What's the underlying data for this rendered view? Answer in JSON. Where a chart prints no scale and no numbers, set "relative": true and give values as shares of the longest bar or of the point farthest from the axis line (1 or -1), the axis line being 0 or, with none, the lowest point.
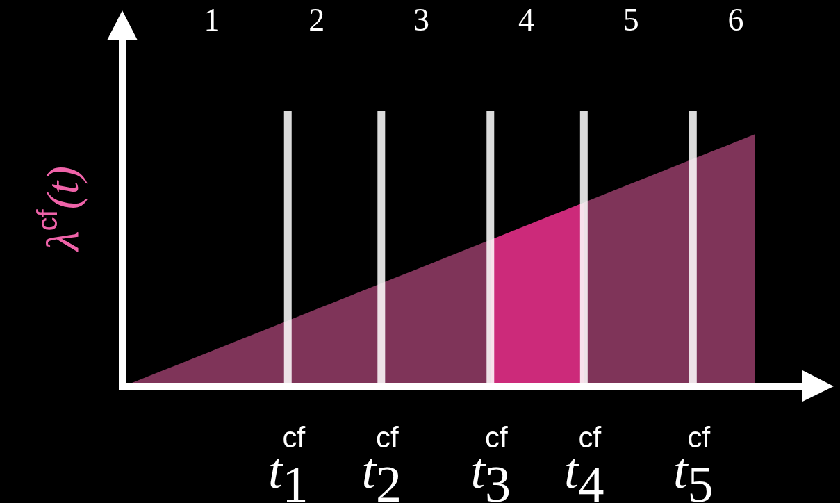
{
  "chart_data": {
    "type": "area",
    "relative": true,
    "ylabel": "λ$^{cf}$(t)",
    "categories": [
      null,
      null,
      null,
      null,
      null,
      null,
      null,
      null,
      null,
      null,
      "t$_{1}$$^{cf}$",
      null,
      null,
      null,
      null,
      null,
      "t$_{2}$$^{cf}$",
      null,
      null,
      null,
      null,
      null,
      null,
      "t$_{3}$$^{cf}$",
      null,
      null,
      null,
      null,
      null,
      "t$_{4}$$^{cf}$",
      null,
      null,
      null,
      null,
      null,
      null,
      "t$_{5}$$^{cf}$",
      null,
      null,
      null,
      null
    ],
    "series": [
      {
        "color": "#7f3459",
        "values": [
          0,
          0.025,
          0.05,
          0.075,
          0.1,
          0.125,
          0.15,
          0.175,
          0.2,
          0.225,
          0.25,
          0.275,
          0.3,
          0.325,
          0.35,
          0.375,
          0.4,
          0.425,
          0.45,
          0.475,
          0.5,
          0.525,
          0.55,
          0.575,
          null,
          null,
          null,
          null,
          null,
          null,
          null,
          null,
          null,
          null,
          null,
          null,
          null,
          null,
          null,
          null,
          null
        ]
      },
      {
        "color": "#7f3459",
        "values": [
          null,
          null,
          null,
          null,
          null,
          null,
          null,
          null,
          null,
          null,
          null,
          null,
          null,
          null,
          null,
          null,
          null,
          null,
          null,
          null,
          null,
          null,
          null,
          null,
          null,
          null,
          null,
          null,
          null,
          0.725,
          0.75,
          0.775,
          0.8,
          0.825,
          0.85,
          0.875,
          0.9,
          0.925,
          0.95,
          0.975,
          1
        ]
      },
      {
        "color": "#cc2a7a",
        "values": [
          null,
          null,
          null,
          null,
          null,
          null,
          null,
          null,
          null,
          null,
          null,
          null,
          null,
          null,
          null,
          null,
          null,
          null,
          null,
          null,
          null,
          null,
          null,
          0.575,
          0.6,
          0.625,
          0.65,
          0.675,
          0.7,
          0.725,
          null,
          null,
          null,
          null,
          null,
          null,
          null,
          null,
          null,
          null,
          null
        ]
      }
    ],
    "ref_lines": [
      {
        "axis": "x",
        "value": "t$_{1}$$^{cf}$",
        "color": "#ffffff"
      },
      {
        "axis": "x",
        "value": "t$_{2}$$^{cf}$",
        "color": "#ffffff"
      },
      {
        "axis": "x",
        "value": "t$_{3}$$^{cf}$",
        "color": "#ffffff"
      },
      {
        "axis": "x",
        "value": "t$_{4}$$^{cf}$",
        "color": "#ffffff"
      },
      {
        "axis": "x",
        "value": "t$_{5}$$^{cf}$",
        "color": "#ffffff"
      }
    ],
    "annotations": [
      "1",
      "2",
      "3",
      "4",
      "5",
      "6"
    ]
  }
}
